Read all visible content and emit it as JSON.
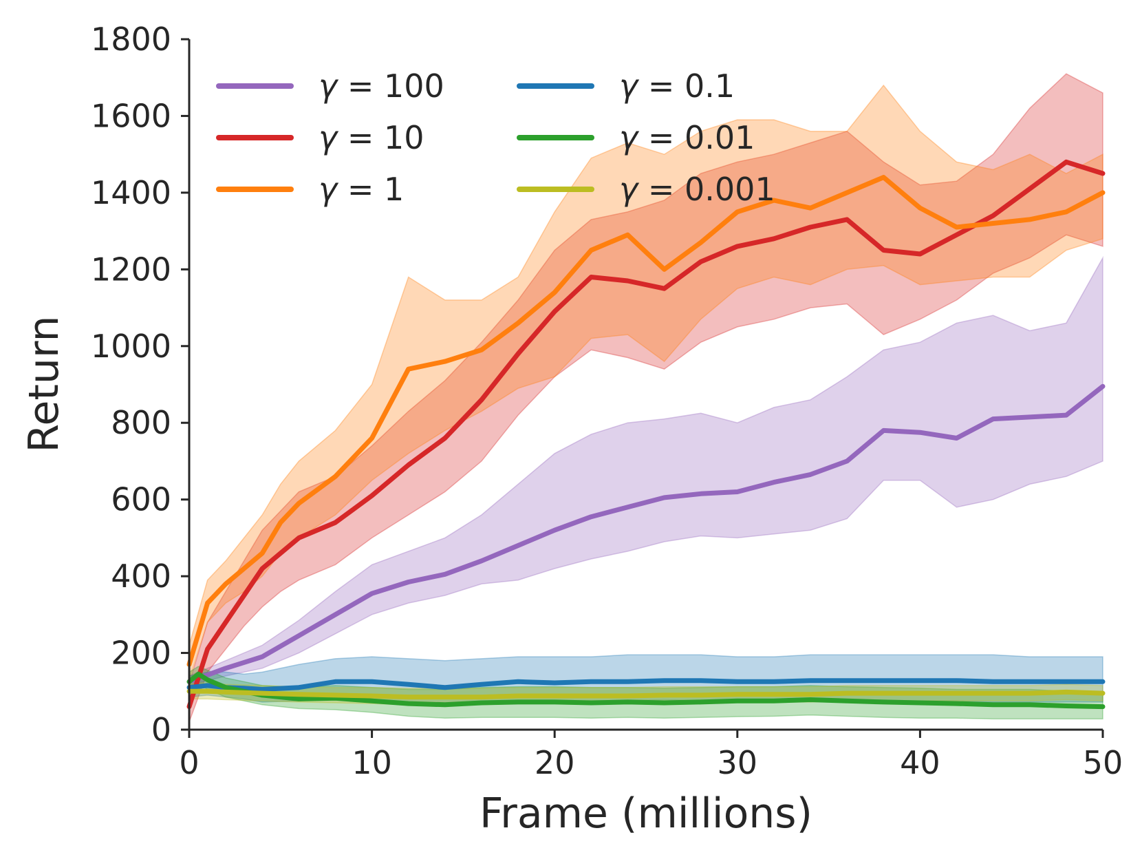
{
  "chart_data": {
    "type": "line",
    "title": "",
    "xlabel": "Frame (millions)",
    "ylabel": "Return",
    "xlim": [
      0,
      50
    ],
    "ylim": [
      0,
      1800
    ],
    "xticks": [
      0,
      10,
      20,
      30,
      40,
      50
    ],
    "yticks": [
      0,
      200,
      400,
      600,
      800,
      1000,
      1200,
      1400,
      1600,
      1800
    ],
    "grid": false,
    "legend_position": "top-left",
    "legend_columns": 2,
    "series": [
      {
        "name": "γ = 100",
        "prefix": "γ = ",
        "value_text": "100",
        "color": "#9467bd",
        "x": [
          0,
          2,
          4,
          6,
          8,
          10,
          12,
          14,
          16,
          18,
          20,
          22,
          24,
          26,
          28,
          30,
          32,
          34,
          36,
          38,
          40,
          42,
          44,
          46,
          48,
          50
        ],
        "mean": [
          125,
          160,
          190,
          245,
          300,
          355,
          385,
          405,
          440,
          480,
          520,
          555,
          580,
          605,
          615,
          620,
          645,
          665,
          700,
          780,
          775,
          760,
          810,
          815,
          820,
          895
        ],
        "upper": [
          140,
          180,
          220,
          285,
          360,
          430,
          465,
          500,
          560,
          640,
          720,
          770,
          800,
          810,
          825,
          800,
          840,
          860,
          920,
          990,
          1010,
          1060,
          1080,
          1040,
          1060,
          1230
        ],
        "lower": [
          115,
          140,
          160,
          200,
          250,
          300,
          330,
          350,
          380,
          390,
          420,
          445,
          465,
          490,
          505,
          500,
          510,
          520,
          550,
          650,
          650,
          580,
          600,
          640,
          660,
          700
        ]
      },
      {
        "name": "γ = 10",
        "prefix": "γ = ",
        "value_text": "10",
        "color": "#d62728",
        "x": [
          0,
          1,
          2,
          3,
          4,
          5,
          6,
          8,
          10,
          12,
          14,
          16,
          18,
          20,
          22,
          24,
          26,
          28,
          30,
          32,
          34,
          36,
          38,
          40,
          42,
          44,
          46,
          48,
          50
        ],
        "mean": [
          60,
          210,
          280,
          350,
          420,
          460,
          500,
          540,
          610,
          690,
          760,
          860,
          980,
          1090,
          1180,
          1170,
          1150,
          1220,
          1260,
          1280,
          1310,
          1330,
          1250,
          1240,
          1290,
          1340,
          1410,
          1480,
          1450
        ],
        "upper": [
          120,
          280,
          360,
          440,
          520,
          570,
          620,
          660,
          740,
          830,
          910,
          1010,
          1120,
          1250,
          1330,
          1350,
          1380,
          1450,
          1480,
          1500,
          1530,
          1560,
          1480,
          1420,
          1430,
          1500,
          1620,
          1710,
          1660
        ],
        "lower": [
          20,
          150,
          210,
          270,
          320,
          360,
          390,
          430,
          500,
          560,
          620,
          700,
          820,
          920,
          990,
          970,
          940,
          1010,
          1050,
          1070,
          1100,
          1110,
          1030,
          1070,
          1120,
          1190,
          1230,
          1290,
          1260
        ]
      },
      {
        "name": "γ = 1",
        "prefix": "γ = ",
        "value_text": "1",
        "color": "#ff7f0e",
        "x": [
          0,
          1,
          2,
          3,
          4,
          5,
          6,
          8,
          10,
          12,
          14,
          16,
          18,
          20,
          22,
          24,
          26,
          28,
          30,
          32,
          34,
          36,
          38,
          40,
          42,
          44,
          46,
          48,
          50
        ],
        "mean": [
          170,
          330,
          380,
          420,
          460,
          540,
          590,
          660,
          760,
          940,
          960,
          990,
          1060,
          1140,
          1250,
          1290,
          1200,
          1270,
          1350,
          1380,
          1360,
          1400,
          1440,
          1360,
          1310,
          1320,
          1330,
          1350,
          1400
        ],
        "upper": [
          220,
          390,
          440,
          500,
          560,
          640,
          700,
          780,
          900,
          1180,
          1120,
          1120,
          1180,
          1350,
          1490,
          1530,
          1500,
          1560,
          1590,
          1590,
          1560,
          1560,
          1680,
          1560,
          1480,
          1460,
          1500,
          1450,
          1500
        ],
        "lower": [
          130,
          280,
          330,
          360,
          400,
          460,
          500,
          560,
          650,
          720,
          780,
          830,
          890,
          920,
          1020,
          1030,
          960,
          1070,
          1150,
          1180,
          1160,
          1200,
          1210,
          1160,
          1170,
          1180,
          1180,
          1250,
          1280
        ]
      },
      {
        "name": "γ = 0.1",
        "prefix": "γ = ",
        "value_text": "0.1",
        "color": "#1f77b4",
        "x": [
          0,
          1,
          2,
          3,
          4,
          6,
          8,
          10,
          12,
          14,
          16,
          18,
          20,
          22,
          24,
          26,
          28,
          30,
          32,
          34,
          36,
          38,
          40,
          42,
          44,
          46,
          48,
          50
        ],
        "mean": [
          110,
          115,
          110,
          108,
          105,
          110,
          125,
          125,
          118,
          110,
          118,
          125,
          122,
          125,
          125,
          128,
          128,
          125,
          125,
          128,
          128,
          128,
          128,
          128,
          125,
          125,
          125,
          125
        ],
        "upper": [
          140,
          150,
          150,
          145,
          150,
          170,
          185,
          190,
          185,
          180,
          185,
          190,
          190,
          190,
          195,
          195,
          195,
          190,
          190,
          195,
          195,
          195,
          195,
          195,
          195,
          190,
          190,
          190
        ],
        "lower": [
          85,
          90,
          85,
          80,
          72,
          75,
          80,
          80,
          70,
          65,
          70,
          75,
          72,
          72,
          75,
          78,
          75,
          72,
          72,
          75,
          75,
          75,
          75,
          75,
          72,
          72,
          72,
          72
        ]
      },
      {
        "name": "γ = 0.01",
        "prefix": "γ = ",
        "value_text": "0.01",
        "color": "#2ca02c",
        "x": [
          0,
          0.5,
          1,
          2,
          3,
          4,
          6,
          8,
          10,
          12,
          14,
          16,
          18,
          20,
          22,
          24,
          26,
          28,
          30,
          32,
          34,
          36,
          38,
          40,
          42,
          44,
          46,
          48,
          50
        ],
        "mean": [
          125,
          145,
          130,
          110,
          100,
          90,
          80,
          82,
          75,
          68,
          65,
          70,
          72,
          72,
          70,
          72,
          70,
          72,
          75,
          75,
          78,
          75,
          72,
          70,
          68,
          65,
          65,
          62,
          60
        ],
        "upper": [
          150,
          165,
          155,
          135,
          125,
          115,
          110,
          115,
          110,
          105,
          105,
          110,
          112,
          112,
          110,
          110,
          108,
          110,
          112,
          112,
          115,
          112,
          110,
          108,
          105,
          105,
          105,
          100,
          100
        ],
        "lower": [
          95,
          120,
          105,
          85,
          75,
          65,
          55,
          52,
          45,
          35,
          30,
          32,
          32,
          32,
          30,
          32,
          30,
          32,
          34,
          35,
          38,
          35,
          32,
          30,
          30,
          28,
          28,
          28,
          28
        ]
      },
      {
        "name": "γ = 0.001",
        "prefix": "γ = ",
        "value_text": "0.001",
        "color": "#bcbd22",
        "x": [
          0,
          1,
          2,
          4,
          6,
          8,
          10,
          12,
          14,
          16,
          18,
          20,
          22,
          24,
          26,
          28,
          30,
          32,
          34,
          36,
          38,
          40,
          42,
          44,
          46,
          48,
          50
        ],
        "mean": [
          100,
          100,
          98,
          95,
          92,
          90,
          88,
          85,
          85,
          85,
          88,
          88,
          88,
          88,
          90,
          90,
          92,
          92,
          92,
          95,
          95,
          95,
          95,
          95,
          95,
          98,
          95
        ],
        "upper": [
          120,
          122,
          118,
          115,
          112,
          110,
          110,
          108,
          108,
          108,
          110,
          110,
          110,
          110,
          112,
          112,
          112,
          112,
          112,
          115,
          115,
          115,
          115,
          115,
          115,
          118,
          115
        ],
        "lower": [
          80,
          80,
          78,
          75,
          72,
          70,
          68,
          65,
          65,
          65,
          68,
          68,
          68,
          68,
          70,
          70,
          72,
          72,
          72,
          75,
          75,
          75,
          75,
          75,
          75,
          78,
          75
        ]
      }
    ]
  }
}
